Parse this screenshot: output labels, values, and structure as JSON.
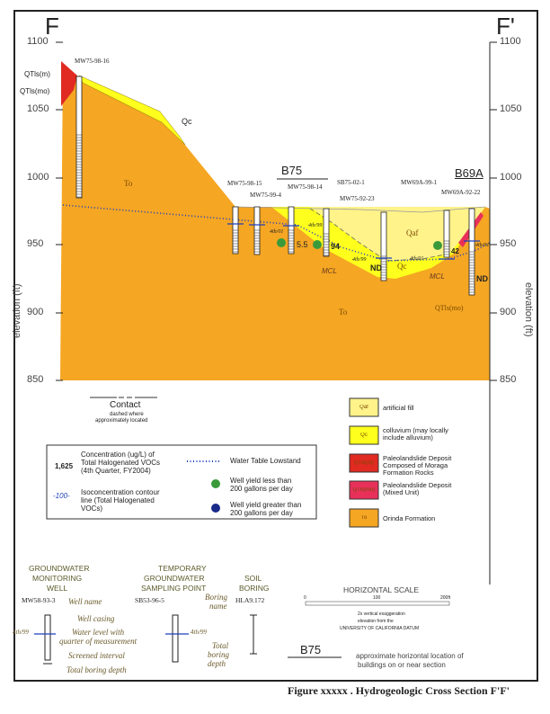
{
  "section": {
    "left_label": "F",
    "right_label": "F'",
    "y_axis_label": "elevation (ft)",
    "y_ticks": [
      "1100",
      "1050",
      "1000",
      "950",
      "900",
      "850"
    ],
    "buildings": [
      "B75",
      "B69A"
    ],
    "wells": [
      "MW75-98-16",
      "MW75-98-15",
      "MW75-99-4",
      "MW75-98-14",
      "SB75-02-1",
      "MW75-92-23",
      "MW69A-99-1",
      "MW69A-92-22"
    ],
    "unit_labels": {
      "qtls_m": "QTls(m)",
      "qtls_mo": "QTls(mo)",
      "qc": "Qc",
      "qc2": "Qc",
      "to1": "To",
      "to2": "To",
      "qaf": "Qaf",
      "qtls_mo2": "QTls(mo)"
    },
    "concentrations": [
      "5.5",
      "94",
      "ND",
      "42",
      "ND"
    ],
    "mcl": [
      "MCL",
      "MCL"
    ],
    "water_dates": [
      "4th/01",
      "4th/99",
      "4th/99",
      "4th/01",
      "4th/01"
    ]
  },
  "legend": {
    "contact_title": "Contact",
    "contact_note_1": "dashed where",
    "contact_note_2": "approximately located",
    "conc_value": "1,625",
    "conc_text": [
      "Concentration (ug/L) of",
      "Total Halogenated VOCs",
      "(4th Quarter, FY2004)"
    ],
    "iso_value": "-100-",
    "iso_text": [
      "Isoconcentration contour",
      "line (Total Halogenated",
      "VOCs)"
    ],
    "water_table": "Water Table Lowstand",
    "yield_low": [
      "Well yield less than",
      "200 gallons per day"
    ],
    "yield_high": [
      "Well yield greater than",
      "200 gallons per day"
    ],
    "units": [
      {
        "code": "Qaf",
        "text": [
          "artificial fill"
        ],
        "color": "#fff38a"
      },
      {
        "code": "Qc",
        "text": [
          "colluvium (may locally",
          "include alluvium)"
        ],
        "color": "#ffff1e"
      },
      {
        "code": "QTls(m)",
        "text": [
          "Paleolandslide Deposit",
          "Composed of Moraga",
          "Formation Rocks"
        ],
        "color": "#e02a22"
      },
      {
        "code": "QTls(mo)",
        "text": [
          "Paleolandslide Deposit",
          "(Mixed Unit)"
        ],
        "color": "#e8305a"
      },
      {
        "code": "To",
        "text": [
          "Orinda Formation"
        ],
        "color": "#f5a623"
      }
    ]
  },
  "key": {
    "gw_title": [
      "GROUNDWATER",
      "MONITORING",
      "WELL"
    ],
    "gw_name": "MW58-93-3",
    "temp_title": [
      "TEMPORARY",
      "GROUNDWATER",
      "SAMPLING POINT"
    ],
    "temp_name": "SB53-96-5",
    "soil_title": [
      "SOIL",
      "BORING"
    ],
    "soil_name": "HLA9.172",
    "well_name": "Well name",
    "well_casing": "Well casing",
    "water_level": [
      "Water level with",
      "quarter of measurement"
    ],
    "screened": "Screened interval",
    "total_depth": "Total boring depth",
    "boring_name": [
      "Boring",
      "name"
    ],
    "total_boring": [
      "Total",
      "boring",
      "depth"
    ],
    "wl_date": "4th/99",
    "wl_date2": "4th/99",
    "hscale_title": "HORIZONTAL SCALE",
    "hscale_ticks": [
      "0",
      "100",
      "200ft"
    ],
    "vert_exag": "2x vertical exaggeration",
    "datum_1": "elevation from the",
    "datum_2": "UNIVERSITY OF CALIFORNIA DATUM",
    "bldg_code": "B75",
    "bldg_text": [
      "approximate horizontal location of",
      "buildings on or near section"
    ]
  },
  "caption": "Figure xxxxx .  Hydrogeologic Cross Section F'F'",
  "colors": {
    "to": "#f5a623",
    "qc": "#ffff1e",
    "qaf": "#fff38a",
    "red": "#e02a22",
    "water": "#1f3fbf",
    "green": "#3a9a3a",
    "blue": "#1a2a8a"
  }
}
